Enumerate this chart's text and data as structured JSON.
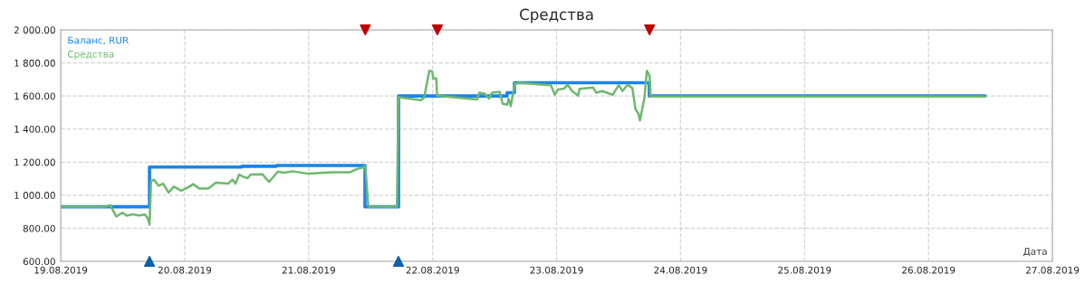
{
  "chart_data": {
    "type": "line",
    "title": "Средства",
    "xlabel": "Дата",
    "xlim": [
      "2019-08-19",
      "2019-08-27"
    ],
    "xticks": [
      {
        "value": "2019-08-19",
        "label": "19.08.2019"
      },
      {
        "value": "2019-08-20",
        "label": "20.08.2019"
      },
      {
        "value": "2019-08-21",
        "label": "21.08.2019"
      },
      {
        "value": "2019-08-22",
        "label": "22.08.2019"
      },
      {
        "value": "2019-08-23",
        "label": "23.08.2019"
      },
      {
        "value": "2019-08-24",
        "label": "24.08.2019"
      },
      {
        "value": "2019-08-25",
        "label": "25.08.2019"
      },
      {
        "value": "2019-08-26",
        "label": "26.08.2019"
      },
      {
        "value": "2019-08-27",
        "label": "27.08.2019"
      }
    ],
    "ylim": [
      600,
      2000
    ],
    "yticks": [
      {
        "value": 600,
        "label": "600.00"
      },
      {
        "value": 800,
        "label": "800.00"
      },
      {
        "value": 1000,
        "label": "1 000.00"
      },
      {
        "value": 1200,
        "label": "1 200.00"
      },
      {
        "value": 1400,
        "label": "1 400.00"
      },
      {
        "value": 1600,
        "label": "1 600.00"
      },
      {
        "value": 1800,
        "label": "1 800.00"
      },
      {
        "value": 2000,
        "label": "2 000.00"
      }
    ],
    "grid": true,
    "legend": "top left",
    "series": [
      {
        "name": "Баланс, RUR",
        "type": "step",
        "color": "#1a84ea",
        "x": [
          "2019-08-19T00:00",
          "2019-08-19T17:11",
          "2019-08-20T11:04",
          "2019-08-20T17:43",
          "2019-08-21T10:54",
          "2019-08-21T17:24",
          "2019-08-22T14:25",
          "2019-08-22T15:50",
          "2019-08-23T17:57",
          "2019-08-26T10:59"
        ],
        "values": [
          930,
          1170,
          1175,
          1180,
          930,
          1600,
          1620,
          1680,
          1600,
          1600
        ]
      },
      {
        "name": "Средства",
        "color": "#6db86d",
        "x": [
          "2019-08-19T00:00",
          "2019-08-19T08:43",
          "2019-08-19T09:35",
          "2019-08-19T10:45",
          "2019-08-19T11:55",
          "2019-08-19T12:48",
          "2019-08-19T13:58",
          "2019-08-19T15:05",
          "2019-08-19T16:18",
          "2019-08-19T16:53",
          "2019-08-19T17:11",
          "2019-08-19T17:29",
          "2019-08-19T18:03",
          "2019-08-19T18:56",
          "2019-08-19T19:49",
          "2019-08-19T20:52",
          "2019-08-19T21:52",
          "2019-08-19T23:19",
          "2019-08-20T00:46",
          "2019-08-20T01:39",
          "2019-08-20T02:49",
          "2019-08-20T04:34",
          "2019-08-20T06:02",
          "2019-08-20T08:23",
          "2019-08-20T09:15",
          "2019-08-20T09:50",
          "2019-08-20T10:32",
          "2019-08-20T11:17",
          "2019-08-20T12:10",
          "2019-08-20T12:46",
          "2019-08-20T15:05",
          "2019-08-20T15:40",
          "2019-08-20T16:22",
          "2019-08-20T18:01",
          "2019-08-20T19:11",
          "2019-08-20T20:56",
          "2019-08-20T23:52",
          "2019-08-21T04:32",
          "2019-08-21T08:03",
          "2019-08-21T09:12",
          "2019-08-21T10:23",
          "2019-08-21T10:58",
          "2019-08-21T11:33",
          "2019-08-21T17:05",
          "2019-08-21T17:23",
          "2019-08-21T21:46",
          "2019-08-21T22:21",
          "2019-08-21T23:21",
          "2019-08-21T23:56",
          "2019-08-22T00:06",
          "2019-08-22T00:42",
          "2019-08-22T00:52",
          "2019-08-22T08:35",
          "2019-08-22T09:02",
          "2019-08-22T10:02",
          "2019-08-22T10:55",
          "2019-08-22T11:30",
          "2019-08-22T12:58",
          "2019-08-22T13:33",
          "2019-08-22T14:26",
          "2019-08-22T14:43",
          "2019-08-22T15:08",
          "2019-08-22T15:53",
          "2019-08-22T16:46",
          "2019-08-22T22:01",
          "2019-08-22T22:53",
          "2019-08-22T23:40",
          "2019-08-23T00:14",
          "2019-08-23T01:25",
          "2019-08-23T02:07",
          "2019-08-23T03:00",
          "2019-08-23T04:09",
          "2019-08-23T04:27",
          "2019-08-23T07:05",
          "2019-08-23T07:40",
          "2019-08-23T08:50",
          "2019-08-23T10:53",
          "2019-08-23T12:02",
          "2019-08-23T12:44",
          "2019-08-23T13:47",
          "2019-08-23T14:40",
          "2019-08-23T15:16",
          "2019-08-23T15:51",
          "2019-08-23T16:08",
          "2019-08-23T17:01",
          "2019-08-23T17:29",
          "2019-08-23T18:00",
          "2019-08-23T18:11",
          "2019-08-26T10:59"
        ],
        "values": [
          931,
          931,
          940,
          871,
          894,
          876,
          885,
          878,
          883,
          858,
          822,
          1085,
          1094,
          1058,
          1070,
          1016,
          1052,
          1027,
          1049,
          1067,
          1040,
          1040,
          1076,
          1070,
          1094,
          1070,
          1125,
          1112,
          1103,
          1125,
          1127,
          1103,
          1081,
          1143,
          1136,
          1145,
          1130,
          1139,
          1139,
          1157,
          1167,
          1176,
          931,
          931,
          1593,
          1575,
          1590,
          1753,
          1748,
          1706,
          1706,
          1602,
          1579,
          1620,
          1615,
          1584,
          1620,
          1626,
          1553,
          1548,
          1584,
          1539,
          1675,
          1680,
          1666,
          1666,
          1608,
          1639,
          1644,
          1669,
          1630,
          1602,
          1644,
          1651,
          1620,
          1630,
          1608,
          1666,
          1630,
          1669,
          1648,
          1521,
          1493,
          1452,
          1590,
          1753,
          1721,
          1597,
          1597
        ]
      },
      {
        "type": "scatter",
        "marker": "triangle",
        "color": "#c00000",
        "x": [
          "2019-08-21T10:58",
          "2019-08-22T00:55",
          "2019-08-23T18:00"
        ],
        "values": [
          2000,
          2000,
          2000
        ]
      },
      {
        "type": "scatter",
        "marker": "triangle",
        "color": "#0d5fa8",
        "x": [
          "2019-08-19T17:11",
          "2019-08-21T17:23"
        ],
        "values": [
          600,
          600
        ]
      }
    ]
  }
}
